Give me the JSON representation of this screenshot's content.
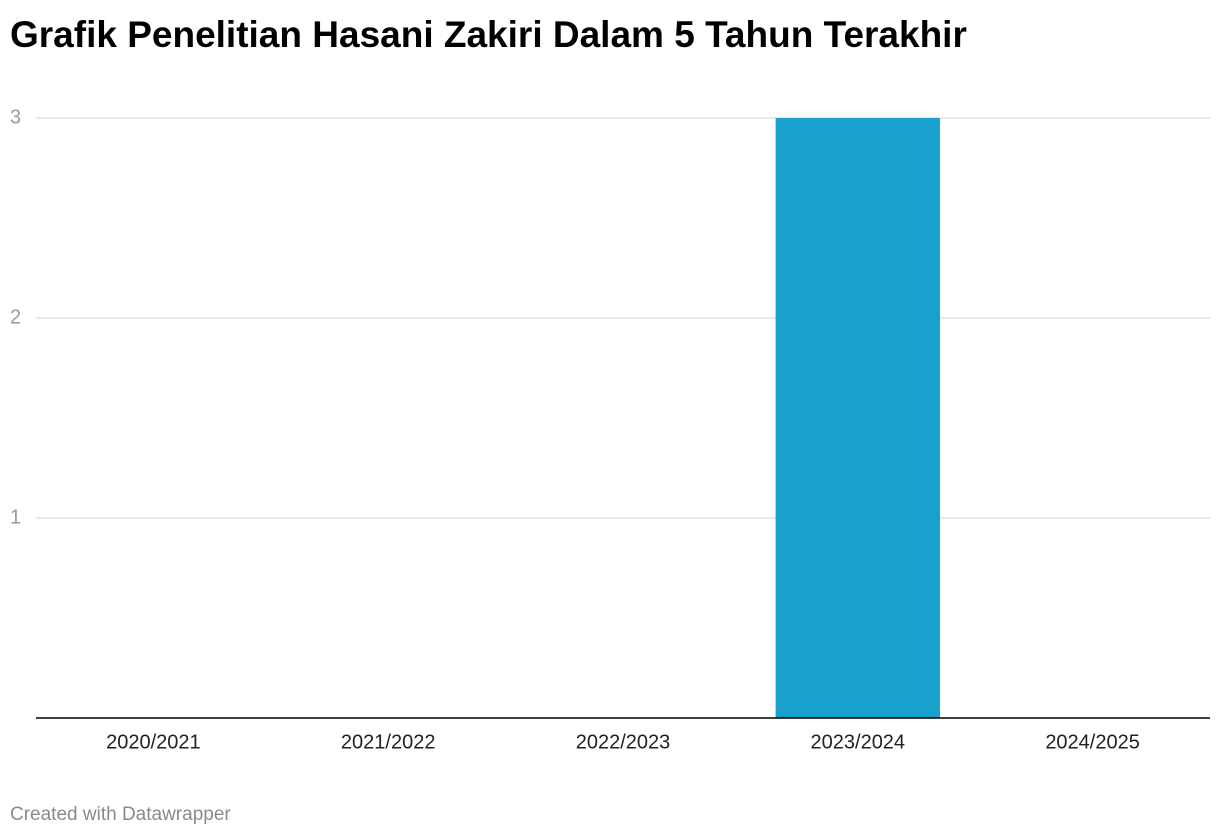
{
  "chart_data": {
    "type": "bar",
    "title": "Grafik Penelitian Hasani Zakiri Dalam 5 Tahun Terakhir",
    "categories": [
      "2020/2021",
      "2021/2022",
      "2022/2023",
      "2023/2024",
      "2024/2025"
    ],
    "values": [
      0,
      0,
      0,
      3,
      0
    ],
    "color": "#18a1cd",
    "ylim": [
      0,
      3
    ],
    "yticks": [
      1,
      2,
      3
    ],
    "grid": true,
    "credit": "Created with Datawrapper"
  }
}
